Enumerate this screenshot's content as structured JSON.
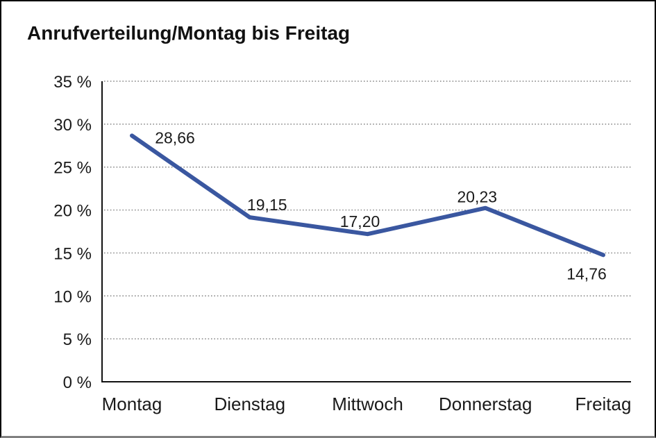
{
  "window": {
    "title": "Anrufverteilung/Montag bis Freitag"
  },
  "chart_data": {
    "type": "line",
    "title": "Anrufverteilung/Montag bis Freitag",
    "categories": [
      "Montag",
      "Dienstag",
      "Mittwoch",
      "Donnerstag",
      "Freitag"
    ],
    "series": [
      {
        "name": "Anrufverteilung",
        "values": [
          28.66,
          19.15,
          17.2,
          20.23,
          14.76
        ]
      }
    ],
    "data_labels": [
      "28,66",
      "19,15",
      "17,20",
      "20,23",
      "14,76"
    ],
    "xlabel": "",
    "ylabel": "",
    "ylim": [
      0,
      35
    ],
    "ytick_step": 5,
    "ytick_labels": [
      "0 %",
      "5 %",
      "10 %",
      "15 %",
      "20 %",
      "25 %",
      "30 %",
      "35 %"
    ],
    "grid": "horizontal-dotted",
    "legend": "none",
    "colors": {
      "line": "#3A57A0",
      "axis": "#111111",
      "gridline": "#6b6b6b",
      "text": "#1a1a1a",
      "frame_border": "#000000",
      "frame_bottom": "#808080",
      "background": "#ffffff"
    }
  }
}
